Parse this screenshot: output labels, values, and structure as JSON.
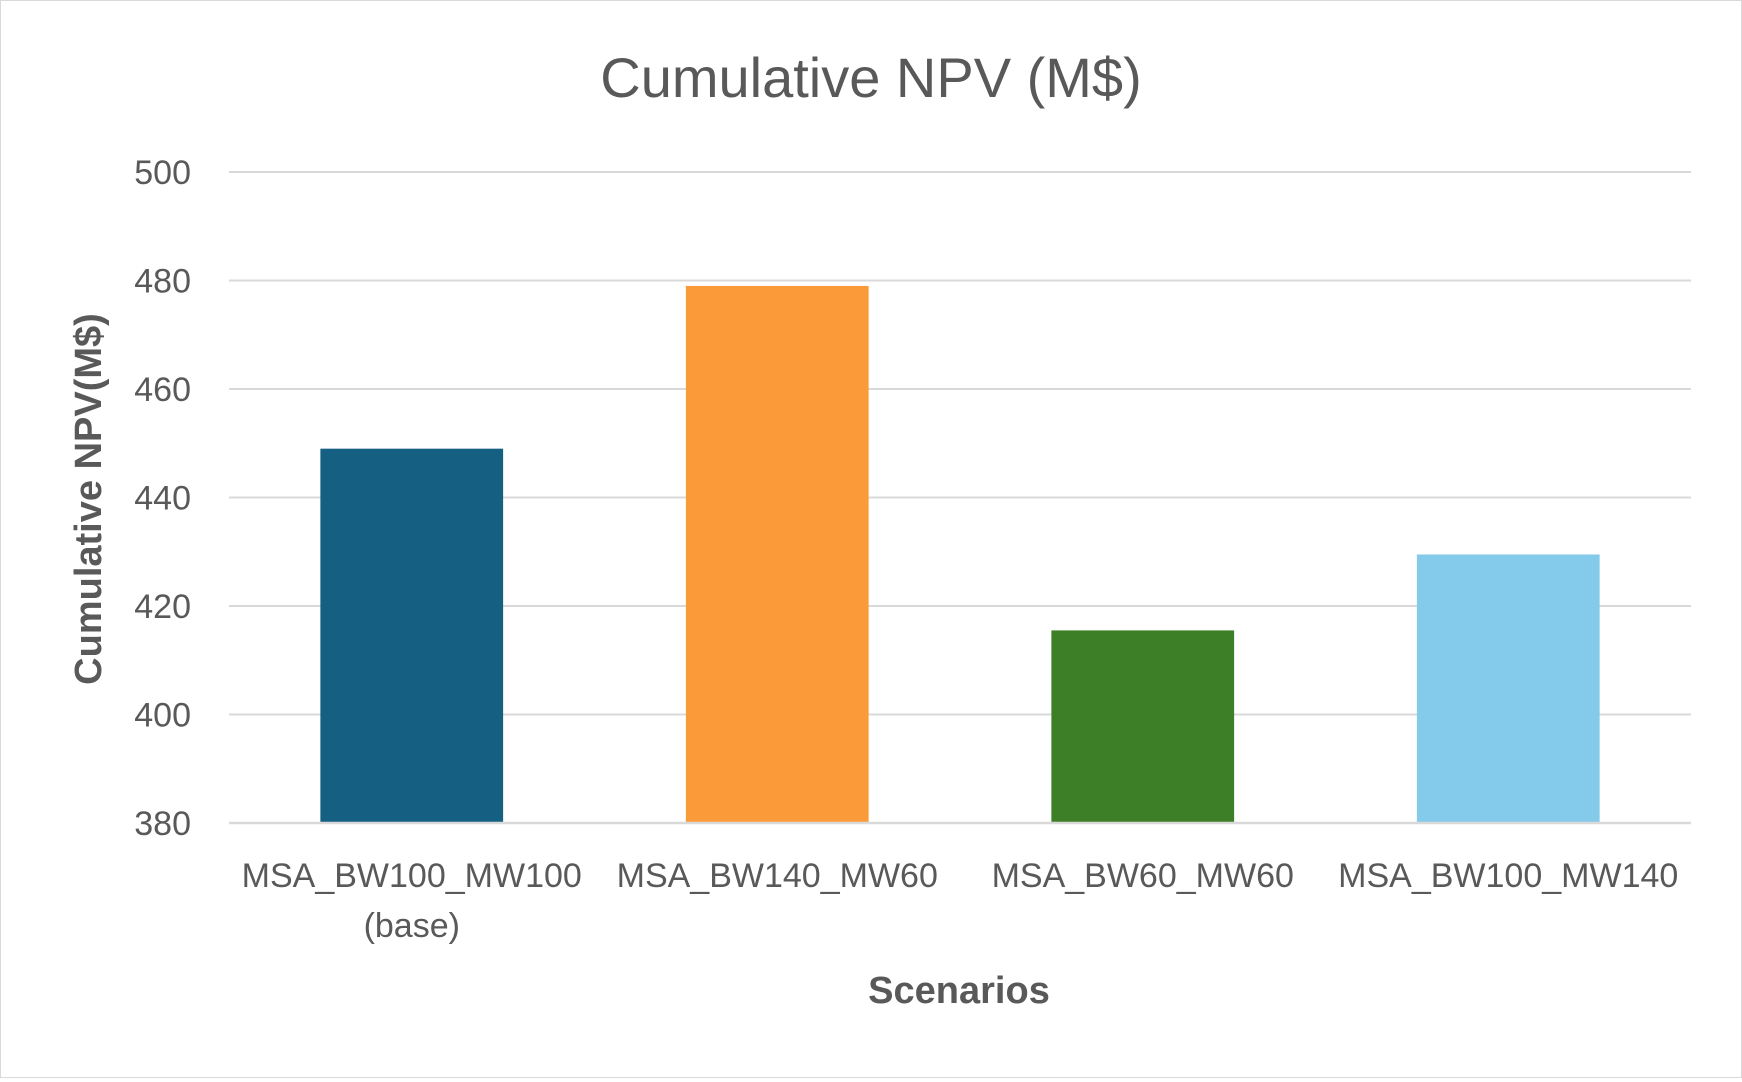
{
  "chart_data": {
    "type": "bar",
    "title": "Cumulative NPV (M$)",
    "xlabel": "Scenarios",
    "ylabel": "Cumulative NPV(M$)",
    "categories": [
      [
        "MSA_BW100_MW100",
        "(base)"
      ],
      [
        "MSA_BW140_MW60"
      ],
      [
        "MSA_BW60_MW60"
      ],
      [
        "MSA_BW100_MW140"
      ]
    ],
    "values": [
      449,
      479,
      415.5,
      429.5
    ],
    "colors": [
      "#156082",
      "#FB9A39",
      "#3D7F26",
      "#84CBEB"
    ],
    "ylim": [
      380,
      500
    ],
    "yticks": [
      380,
      400,
      420,
      440,
      460,
      480,
      500
    ],
    "grid": true,
    "legend": "none"
  }
}
